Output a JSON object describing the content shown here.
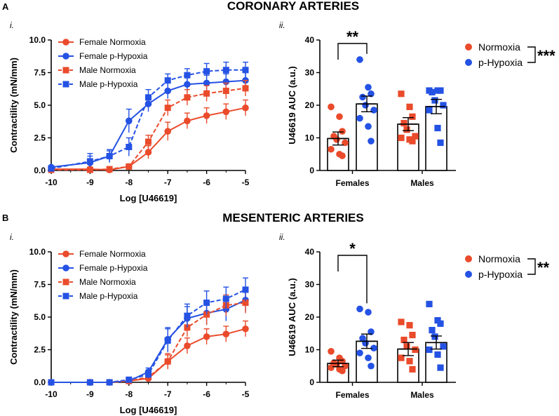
{
  "figure": {
    "panels": [
      {
        "letter": "A",
        "title": "CORONARY ARTERIES",
        "sub_i": "i.",
        "sub_ii": "ii."
      },
      {
        "letter": "B",
        "title": "MESENTERIC ARTERIES",
        "sub_i": "i.",
        "sub_ii": "ii."
      }
    ]
  },
  "colors": {
    "female_normoxia": "#ea4b2b",
    "female_hypoxia": "#2452e4",
    "male_normoxia": "#ea4b2b",
    "male_hypoxia": "#2452e4"
  },
  "chart_data": [
    {
      "id": "A-i",
      "type": "line",
      "xlabel": "Log [U46619]",
      "ylabel": "Contractility (mN/mm)",
      "xlim": [
        -10,
        -5
      ],
      "ylim": [
        0,
        10
      ],
      "xticks": [
        -10,
        -9,
        -8,
        -7,
        -6,
        -5
      ],
      "xtick_labels": [
        "-10",
        "-9",
        "-8",
        "-7",
        "-6",
        "-5"
      ],
      "yticks": [
        0,
        2.5,
        5,
        7.5,
        10
      ],
      "ytick_labels": [
        "0.0",
        "2.5",
        "5.0",
        "7.5",
        "10.0"
      ],
      "x": [
        -10,
        -9,
        -8.5,
        -8,
        -7.5,
        -7,
        -6.5,
        -6,
        -5.5,
        -5
      ],
      "series": [
        {
          "name": "Female Normoxia",
          "marker": "circle",
          "dash": false,
          "color_key": "female_normoxia",
          "values": [
            0.1,
            0.1,
            0.05,
            0.3,
            1.4,
            3.0,
            3.8,
            4.2,
            4.5,
            4.8
          ],
          "errors": [
            0.05,
            0.1,
            0.1,
            0.2,
            0.5,
            0.7,
            0.6,
            0.6,
            0.6,
            0.6
          ]
        },
        {
          "name": "Female p-Hypoxia",
          "marker": "circle",
          "dash": false,
          "color_key": "female_hypoxia",
          "values": [
            0.25,
            0.6,
            1.1,
            3.8,
            5.1,
            6.1,
            6.6,
            6.7,
            6.8,
            6.9
          ],
          "errors": [
            0.1,
            0.7,
            0.5,
            0.9,
            0.6,
            0.6,
            0.6,
            0.6,
            0.6,
            0.6
          ]
        },
        {
          "name": "Male Normoxia",
          "marker": "square",
          "dash": true,
          "color_key": "male_normoxia",
          "values": [
            0.05,
            0.05,
            0.1,
            0.3,
            2.2,
            4.8,
            5.6,
            5.9,
            6.1,
            6.3
          ],
          "errors": [
            0.05,
            0.1,
            0.1,
            0.2,
            0.5,
            0.6,
            0.6,
            0.6,
            0.6,
            0.6
          ]
        },
        {
          "name": "Male p-Hypoxia",
          "marker": "square",
          "dash": true,
          "color_key": "male_hypoxia",
          "values": [
            0.15,
            0.7,
            1.1,
            1.8,
            5.6,
            6.9,
            7.3,
            7.6,
            7.7,
            7.7
          ],
          "errors": [
            0.1,
            0.4,
            0.4,
            0.7,
            0.6,
            0.5,
            0.5,
            0.6,
            0.6,
            0.6
          ]
        }
      ]
    },
    {
      "id": "A-ii",
      "type": "bar",
      "ylabel": "U46619 AUC (a.u.)",
      "ylim": [
        0,
        40
      ],
      "yticks": [
        0,
        10,
        20,
        30,
        40
      ],
      "ytick_labels": [
        "0",
        "10",
        "20",
        "30",
        "40"
      ],
      "categories": [
        "Females",
        "Males"
      ],
      "series": [
        {
          "name": "Normoxia",
          "color_key": "female_normoxia",
          "means": [
            9.8,
            14.2
          ],
          "sems": [
            2.0,
            2.0
          ],
          "points": [
            [
              19.5,
              16.5,
              12,
              10.5,
              9.5,
              8.5,
              6.5,
              5,
              4.5
            ],
            [
              23.5,
              19.5,
              16.5,
              14.5,
              12.5,
              10.5,
              10,
              9.5,
              9
            ]
          ]
        },
        {
          "name": "p-Hypoxia",
          "color_key": "female_hypoxia",
          "means": [
            20.4,
            19.6
          ],
          "sems": [
            2.4,
            2.2
          ],
          "points": [
            [
              34,
              25.5,
              23.5,
              22.5,
              20,
              18.5,
              16,
              13.5,
              9
            ],
            [
              24.5,
              24.5,
              24.5,
              24,
              21.5,
              20,
              18.5,
              13,
              8.5
            ]
          ]
        }
      ],
      "bracket_label": "**",
      "legend": [
        "Normoxia",
        "p-Hypoxia"
      ],
      "legend_sig": "***"
    },
    {
      "id": "B-i",
      "type": "line",
      "xlabel": "Log [U46619]",
      "ylabel": "Contractility (mN/mm)",
      "xlim": [
        -10,
        -5
      ],
      "ylim": [
        0,
        10
      ],
      "xticks": [
        -10,
        -9,
        -8,
        -7,
        -6,
        -5
      ],
      "xtick_labels": [
        "-10",
        "-9",
        "-8",
        "-7",
        "-6",
        "-5"
      ],
      "yticks": [
        0,
        2.5,
        5,
        7.5,
        10
      ],
      "ytick_labels": [
        "0.0",
        "2.5",
        "5.0",
        "7.5",
        "10.0"
      ],
      "x": [
        -10,
        -9,
        -8.5,
        -8,
        -7.5,
        -7,
        -6.5,
        -6,
        -5.5,
        -5
      ],
      "series": [
        {
          "name": "Female Normoxia",
          "marker": "circle",
          "dash": false,
          "color_key": "female_normoxia",
          "values": [
            0,
            0,
            0,
            0.1,
            0.3,
            1.6,
            2.8,
            3.5,
            3.7,
            4.1
          ],
          "errors": [
            0.05,
            0.05,
            0.05,
            0.1,
            0.2,
            0.6,
            0.6,
            0.6,
            0.6,
            0.6
          ]
        },
        {
          "name": "Female p-Hypoxia",
          "marker": "circle",
          "dash": false,
          "color_key": "female_hypoxia",
          "values": [
            0,
            0,
            0,
            0.1,
            0.8,
            3.3,
            4.9,
            5.3,
            5.6,
            6.3
          ],
          "errors": [
            0.05,
            0.05,
            0.05,
            0.1,
            0.3,
            0.9,
            0.9,
            0.9,
            0.9,
            0.9
          ]
        },
        {
          "name": "Male Normoxia",
          "marker": "square",
          "dash": true,
          "color_key": "male_normoxia",
          "values": [
            0,
            0,
            0,
            0.1,
            0.4,
            1.6,
            4.2,
            5.2,
            5.9,
            6.1
          ],
          "errors": [
            0.05,
            0.05,
            0.05,
            0.1,
            0.2,
            0.5,
            0.7,
            0.8,
            0.8,
            0.8
          ]
        },
        {
          "name": "Male p-Hypoxia",
          "marker": "square",
          "dash": true,
          "color_key": "male_hypoxia",
          "values": [
            0,
            0,
            0,
            0.2,
            0.6,
            3.2,
            5.1,
            6.1,
            6.4,
            7.1
          ],
          "errors": [
            0.05,
            0.05,
            0.05,
            0.1,
            0.3,
            0.9,
            0.9,
            0.9,
            0.9,
            0.9
          ]
        }
      ]
    },
    {
      "id": "B-ii",
      "type": "bar",
      "ylabel": "U46619 AUC (a.u.)",
      "ylim": [
        0,
        40
      ],
      "yticks": [
        0,
        10,
        20,
        30,
        40
      ],
      "ytick_labels": [
        "0",
        "10",
        "20",
        "30",
        "40"
      ],
      "categories": [
        "Females",
        "Males"
      ],
      "series": [
        {
          "name": "Normoxia",
          "color_key": "female_normoxia",
          "means": [
            5.8,
            10.2
          ],
          "sems": [
            1.0,
            2.0
          ],
          "points": [
            [
              9.5,
              7.5,
              6.5,
              6,
              5.5,
              5,
              4.5,
              4,
              3.5
            ],
            [
              18.5,
              17.5,
              14.5,
              13,
              11,
              10,
              7.5,
              6.5,
              4
            ]
          ]
        },
        {
          "name": "p-Hypoxia",
          "color_key": "female_hypoxia",
          "means": [
            12.6,
            12.2
          ],
          "sems": [
            2.2,
            2.0
          ],
          "points": [
            [
              22.5,
              21.5,
              15.5,
              13.5,
              12,
              10.5,
              9,
              7.5,
              5
            ],
            [
              24,
              19,
              18,
              16,
              14,
              11,
              10,
              8.5,
              4.5
            ]
          ]
        }
      ],
      "bracket_label": "*",
      "legend": [
        "Normoxia",
        "p-Hypoxia"
      ],
      "legend_sig": "**"
    }
  ]
}
